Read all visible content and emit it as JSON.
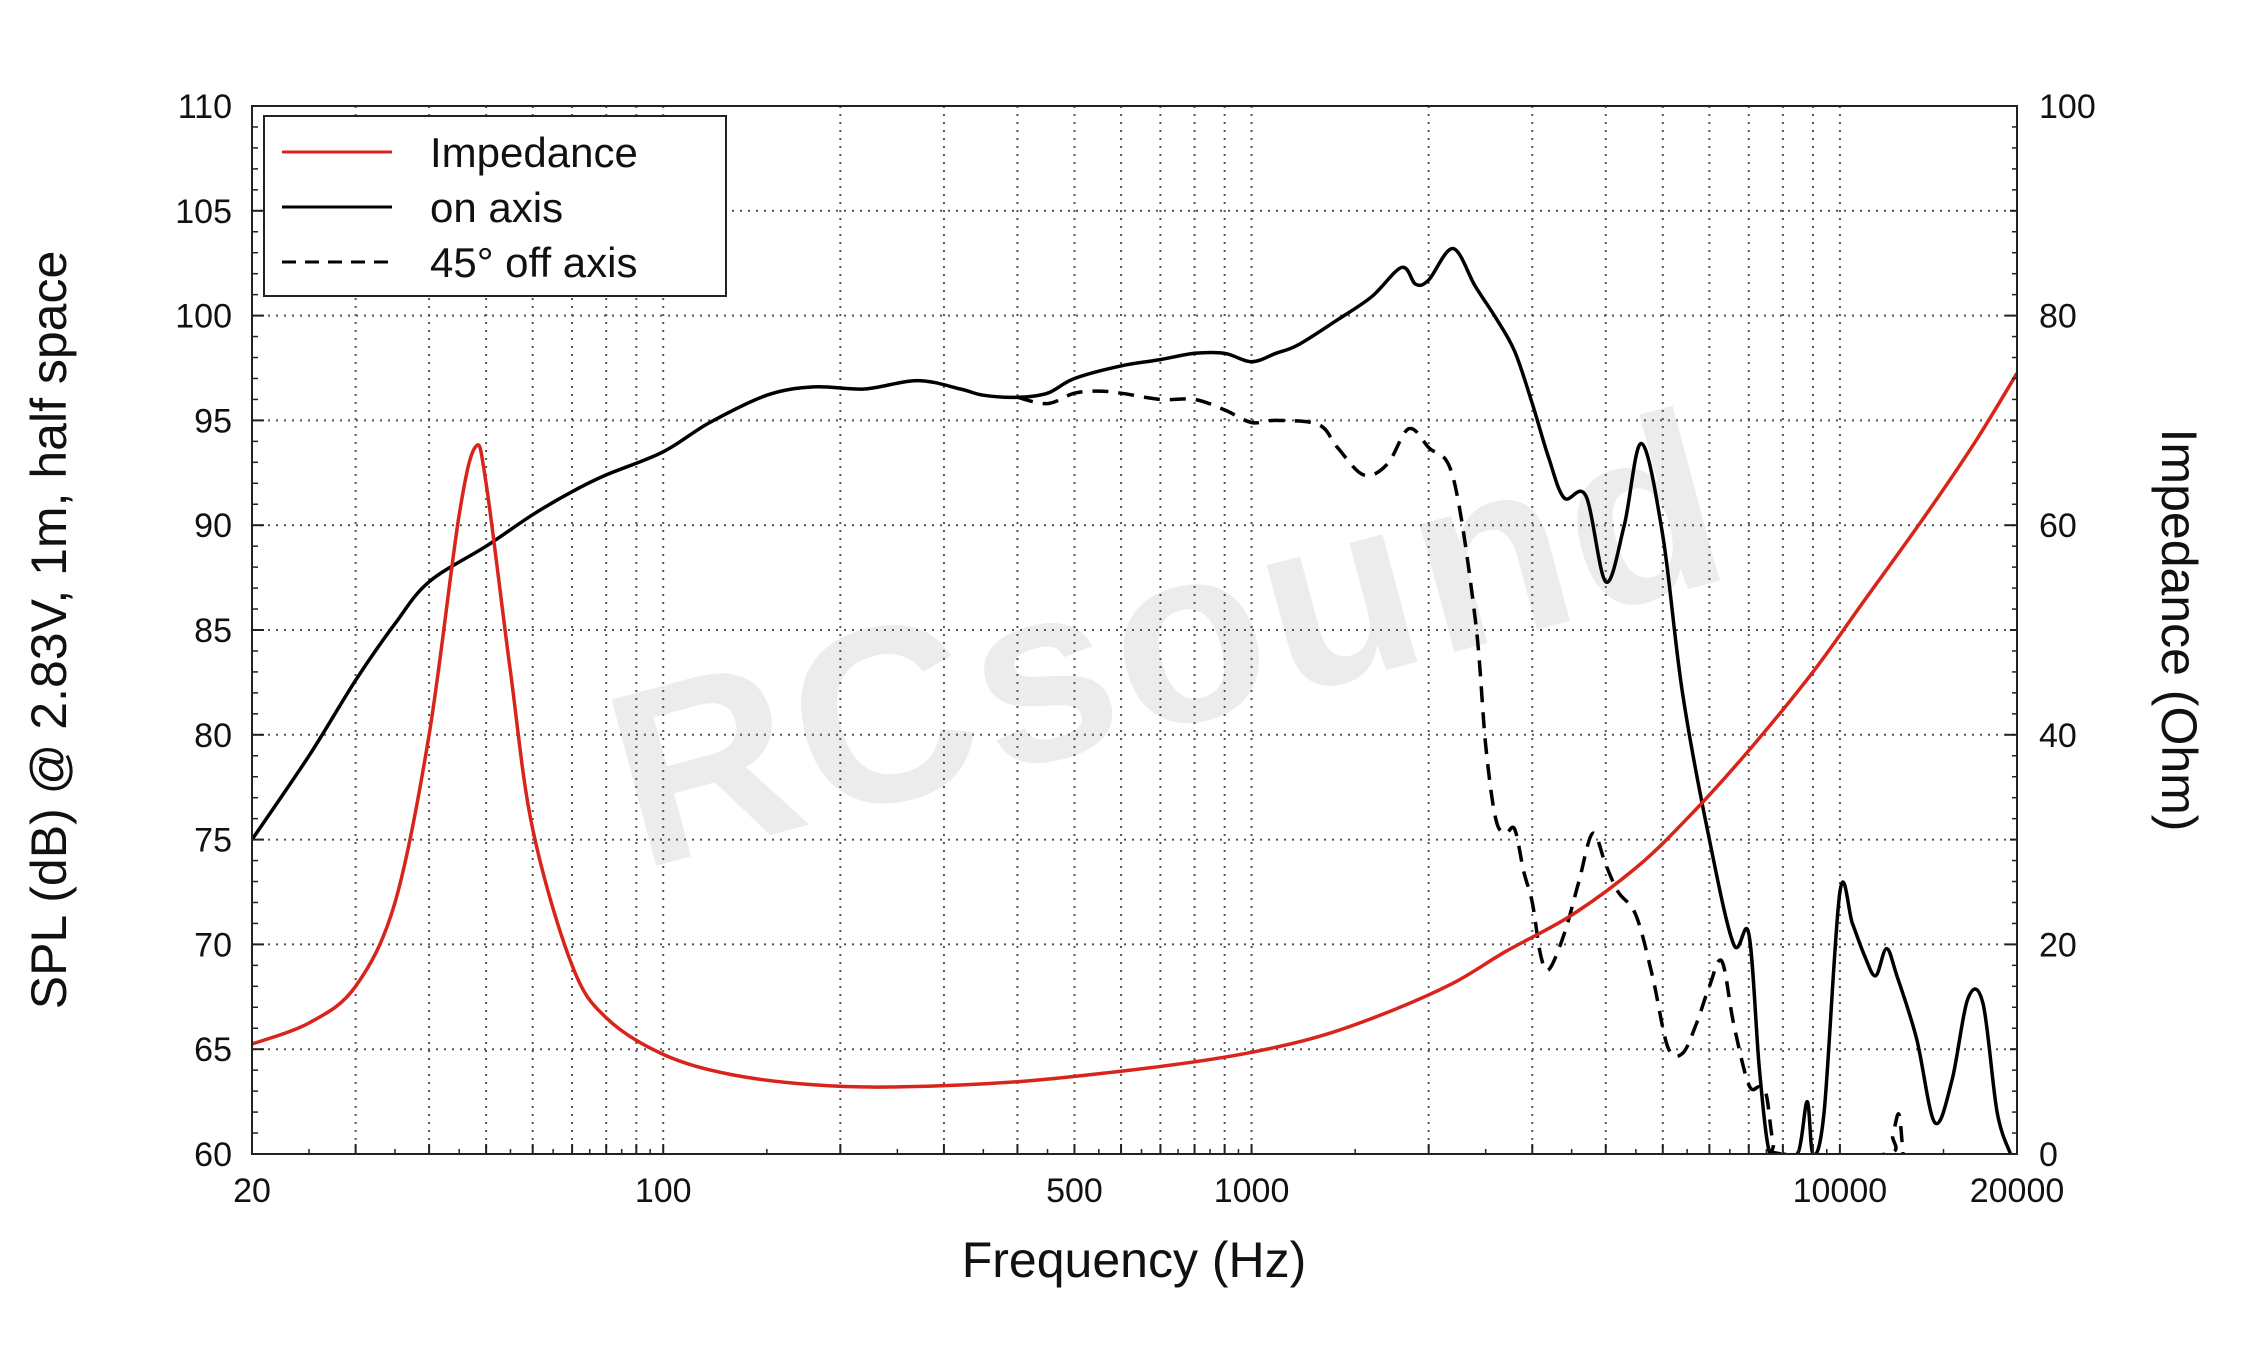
{
  "chart_data": {
    "type": "line",
    "title": "",
    "xlabel": "Frequency (Hz)",
    "ylabel": "SPL (dB) @ 2.83V, 1m, half space",
    "y2label": "Impedance (Ohm)",
    "xscale": "log",
    "xlim": [
      20,
      20000
    ],
    "ylim": [
      60,
      110
    ],
    "y2lim": [
      0,
      100
    ],
    "x_tick_labels": [
      "20",
      "100",
      "500",
      "1000",
      "10000",
      "20000"
    ],
    "y_tick_labels": [
      "60",
      "65",
      "70",
      "75",
      "80",
      "85",
      "90",
      "95",
      "100",
      "105",
      "110"
    ],
    "y2_tick_labels": [
      "0",
      "20",
      "40",
      "60",
      "80",
      "100"
    ],
    "grid": true,
    "legend_position": "top-left",
    "watermark": "RCsound",
    "series": [
      {
        "name": "Impedance",
        "axis": "right",
        "color": "#d9241c",
        "style": "solid",
        "points": [
          [
            20,
            10.5
          ],
          [
            25,
            12.5
          ],
          [
            30,
            16
          ],
          [
            35,
            24
          ],
          [
            40,
            40
          ],
          [
            45,
            61
          ],
          [
            48,
            67.5
          ],
          [
            50,
            64
          ],
          [
            55,
            46
          ],
          [
            60,
            31
          ],
          [
            70,
            18
          ],
          [
            80,
            13
          ],
          [
            100,
            9.5
          ],
          [
            130,
            7.6
          ],
          [
            180,
            6.6
          ],
          [
            250,
            6.4
          ],
          [
            400,
            6.9
          ],
          [
            600,
            7.9
          ],
          [
            800,
            8.8
          ],
          [
            1000,
            9.7
          ],
          [
            1300,
            11.2
          ],
          [
            1700,
            13.5
          ],
          [
            2200,
            16.3
          ],
          [
            2700,
            19.3
          ],
          [
            3500,
            22.8
          ],
          [
            4500,
            27.3
          ],
          [
            5500,
            32
          ],
          [
            7000,
            38.5
          ],
          [
            9000,
            46
          ],
          [
            11000,
            52.8
          ],
          [
            14000,
            61
          ],
          [
            17000,
            68
          ],
          [
            20000,
            74.5
          ]
        ]
      },
      {
        "name": "on axis",
        "axis": "left",
        "color": "#000000",
        "style": "solid",
        "points": [
          [
            20,
            75
          ],
          [
            25,
            79
          ],
          [
            30,
            82.6
          ],
          [
            35,
            85.3
          ],
          [
            40,
            87.3
          ],
          [
            50,
            89
          ],
          [
            60,
            90.5
          ],
          [
            70,
            91.6
          ],
          [
            80,
            92.4
          ],
          [
            100,
            93.5
          ],
          [
            120,
            94.9
          ],
          [
            150,
            96.2
          ],
          [
            180,
            96.6
          ],
          [
            220,
            96.5
          ],
          [
            270,
            96.9
          ],
          [
            320,
            96.5
          ],
          [
            350,
            96.2
          ],
          [
            400,
            96.1
          ],
          [
            450,
            96.3
          ],
          [
            500,
            97
          ],
          [
            600,
            97.6
          ],
          [
            700,
            97.9
          ],
          [
            800,
            98.2
          ],
          [
            900,
            98.2
          ],
          [
            1000,
            97.8
          ],
          [
            1100,
            98.2
          ],
          [
            1200,
            98.6
          ],
          [
            1400,
            99.8
          ],
          [
            1600,
            100.9
          ],
          [
            1800,
            102.3
          ],
          [
            1900,
            101.5
          ],
          [
            2000,
            101.7
          ],
          [
            2200,
            103.2
          ],
          [
            2400,
            101.4
          ],
          [
            2600,
            99.9
          ],
          [
            2800,
            98.3
          ],
          [
            3000,
            95.8
          ],
          [
            3200,
            93.2
          ],
          [
            3400,
            91.3
          ],
          [
            3700,
            91.4
          ],
          [
            4000,
            87.3
          ],
          [
            4300,
            90
          ],
          [
            4600,
            93.9
          ],
          [
            5000,
            89.5
          ],
          [
            5400,
            82
          ],
          [
            6000,
            75
          ],
          [
            6600,
            70
          ],
          [
            7000,
            70.5
          ],
          [
            7300,
            64
          ],
          [
            7600,
            60
          ],
          [
            8000,
            60
          ],
          [
            8500,
            60.1
          ],
          [
            8800,
            62.5
          ],
          [
            9000,
            60
          ],
          [
            9400,
            62
          ],
          [
            10000,
            72.5
          ],
          [
            10500,
            71
          ],
          [
            11000,
            69.5
          ],
          [
            11500,
            68.5
          ],
          [
            12000,
            69.8
          ],
          [
            12500,
            68.5
          ],
          [
            13500,
            65.5
          ],
          [
            14500,
            61.5
          ],
          [
            15500,
            63.5
          ],
          [
            16500,
            67.4
          ],
          [
            17500,
            67.2
          ],
          [
            18500,
            62
          ],
          [
            19500,
            60
          ]
        ]
      },
      {
        "name": "45° off axis",
        "axis": "left",
        "color": "#000000",
        "style": "dashed",
        "points": [
          [
            400,
            96.1
          ],
          [
            450,
            95.8
          ],
          [
            500,
            96.3
          ],
          [
            550,
            96.4
          ],
          [
            600,
            96.3
          ],
          [
            700,
            96
          ],
          [
            800,
            96
          ],
          [
            900,
            95.5
          ],
          [
            1000,
            94.9
          ],
          [
            1100,
            95
          ],
          [
            1300,
            94.8
          ],
          [
            1400,
            93.7
          ],
          [
            1550,
            92.4
          ],
          [
            1700,
            92.9
          ],
          [
            1850,
            94.6
          ],
          [
            2000,
            93.7
          ],
          [
            2200,
            92.3
          ],
          [
            2400,
            85.5
          ],
          [
            2500,
            79.5
          ],
          [
            2600,
            76
          ],
          [
            2700,
            75.3
          ],
          [
            2800,
            75.5
          ],
          [
            2900,
            73.5
          ],
          [
            3000,
            72
          ],
          [
            3100,
            69.5
          ],
          [
            3200,
            68.8
          ],
          [
            3400,
            70.5
          ],
          [
            3600,
            73
          ],
          [
            3800,
            75.3
          ],
          [
            4000,
            73.8
          ],
          [
            4200,
            72.5
          ],
          [
            4500,
            71.4
          ],
          [
            4800,
            68.5
          ],
          [
            5100,
            65.1
          ],
          [
            5400,
            64.8
          ],
          [
            5700,
            66.2
          ],
          [
            6000,
            68
          ],
          [
            6300,
            69.2
          ],
          [
            6600,
            66.2
          ],
          [
            7000,
            63.3
          ],
          [
            7300,
            63.2
          ],
          [
            7500,
            62.8
          ],
          [
            7700,
            60.6
          ],
          [
            8000,
            60
          ],
          [
            12000,
            60
          ],
          [
            12300,
            60.9
          ],
          [
            12600,
            61.9
          ],
          [
            12800,
            60
          ]
        ]
      }
    ]
  }
}
